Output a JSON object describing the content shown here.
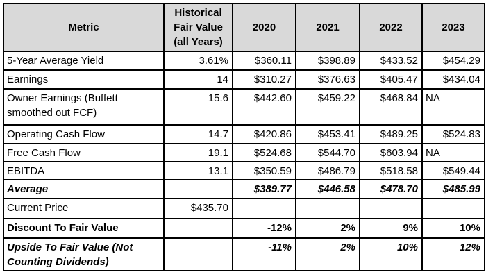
{
  "table": {
    "header": {
      "metric": "Metric",
      "hfv": "Historical Fair Value (all Years)",
      "years": [
        "2020",
        "2021",
        "2022",
        "2023"
      ]
    },
    "rows": [
      {
        "metric": "5-Year Average Yield",
        "hfv": "3.61%",
        "values": [
          "$360.11",
          "$398.89",
          "$433.52",
          "$454.29"
        ],
        "style": "normal"
      },
      {
        "metric": "Earnings",
        "hfv": "14",
        "values": [
          "$310.27",
          "$376.63",
          "$405.47",
          "$434.04"
        ],
        "style": "normal"
      },
      {
        "metric": "Owner Earnings (Buffett smoothed out FCF)",
        "hfv": "15.6",
        "values": [
          "$442.60",
          "$459.22",
          "$468.84",
          "NA"
        ],
        "style": "normal"
      },
      {
        "metric": "Operating Cash Flow",
        "hfv": "14.7",
        "values": [
          "$420.86",
          "$453.41",
          "$489.25",
          "$524.83"
        ],
        "style": "normal"
      },
      {
        "metric": "Free Cash Flow",
        "hfv": "19.1",
        "values": [
          "$524.68",
          "$544.70",
          "$603.94",
          "NA"
        ],
        "style": "normal"
      },
      {
        "metric": "EBITDA",
        "hfv": "13.1",
        "values": [
          "$350.59",
          "$486.79",
          "$518.58",
          "$549.44"
        ],
        "style": "normal"
      },
      {
        "metric": "Average",
        "hfv": "",
        "values": [
          "$389.77",
          "$446.58",
          "$478.70",
          "$485.99"
        ],
        "style": "bold-italic"
      },
      {
        "metric": "Current Price",
        "hfv": "$435.70",
        "values": [
          "",
          "",
          "",
          ""
        ],
        "style": "normal"
      },
      {
        "metric": "Discount To Fair Value",
        "hfv": "",
        "values": [
          "-12%",
          "2%",
          "9%",
          "10%"
        ],
        "style": "bold"
      },
      {
        "metric": "Upside To Fair Value (Not Counting Dividends)",
        "hfv": "",
        "values": [
          "-11%",
          "2%",
          "10%",
          "12%"
        ],
        "style": "bold-italic"
      }
    ],
    "colors": {
      "header_bg": "#d9d9d9",
      "border": "#000000",
      "background": "#ffffff"
    }
  },
  "chart_data": {
    "type": "table",
    "title": "Historical Fair Value estimates table",
    "columns": [
      "Metric",
      "Historical Fair Value (all Years)",
      "2020",
      "2021",
      "2022",
      "2023"
    ],
    "rows": [
      [
        "5-Year Average Yield",
        "3.61%",
        "$360.11",
        "$398.89",
        "$433.52",
        "$454.29"
      ],
      [
        "Earnings",
        "14",
        "$310.27",
        "$376.63",
        "$405.47",
        "$434.04"
      ],
      [
        "Owner Earnings (Buffett smoothed out FCF)",
        "15.6",
        "$442.60",
        "$459.22",
        "$468.84",
        "NA"
      ],
      [
        "Operating Cash Flow",
        "14.7",
        "$420.86",
        "$453.41",
        "$489.25",
        "$524.83"
      ],
      [
        "Free Cash Flow",
        "19.1",
        "$524.68",
        "$544.70",
        "$603.94",
        "NA"
      ],
      [
        "EBITDA",
        "13.1",
        "$350.59",
        "$486.79",
        "$518.58",
        "$549.44"
      ],
      [
        "Average",
        "",
        "$389.77",
        "$446.58",
        "$478.70",
        "$485.99"
      ],
      [
        "Current Price",
        "$435.70",
        "",
        "",
        "",
        ""
      ],
      [
        "Discount To Fair Value",
        "",
        "-12%",
        "2%",
        "9%",
        "10%"
      ],
      [
        "Upside To Fair Value (Not Counting Dividends)",
        "",
        "-11%",
        "2%",
        "10%",
        "12%"
      ]
    ],
    "layout_hints": {
      "header_background": "#d9d9d9",
      "grid": true,
      "bold_rows": [
        "Discount To Fair Value"
      ],
      "bold_italic_rows": [
        "Average",
        "Upside To Fair Value (Not Counting Dividends)"
      ]
    }
  }
}
